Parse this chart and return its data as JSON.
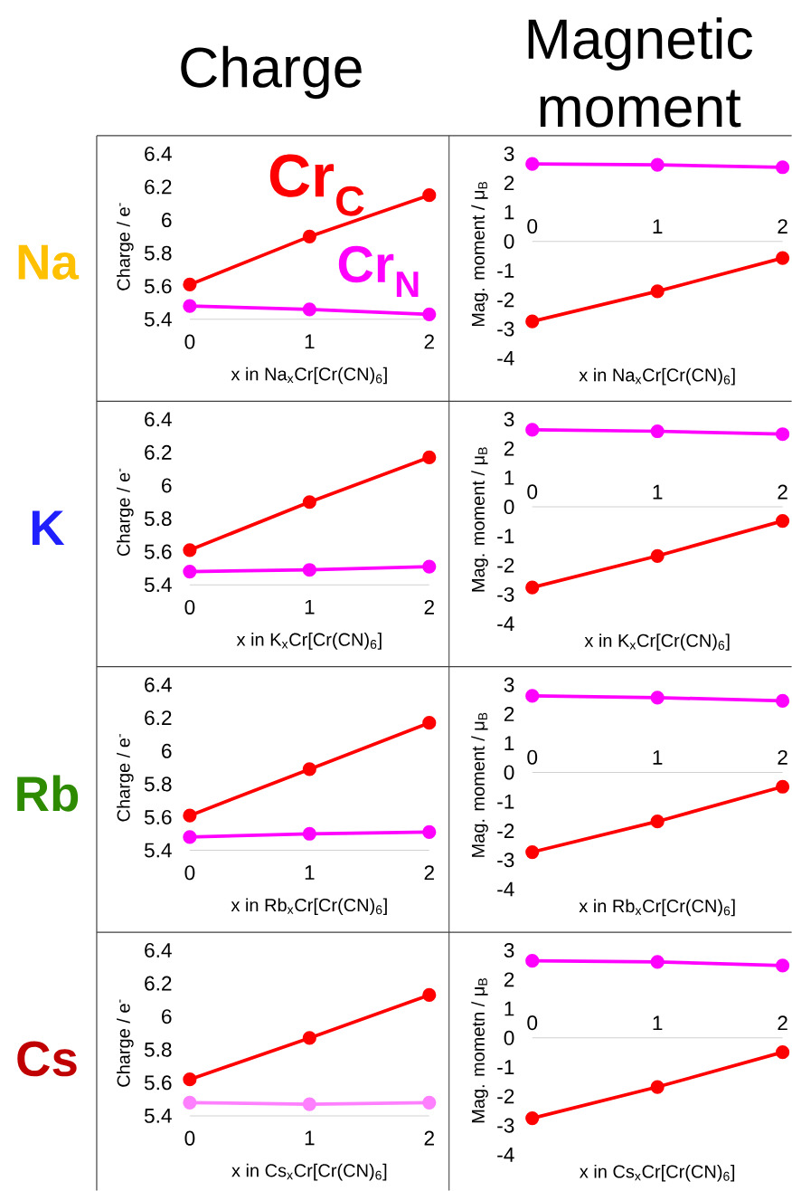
{
  "chart_data": [
    {
      "type": "line",
      "title": "Charge",
      "annotations": [
        "Na"
      ],
      "xlabel": "x in Na$_{x}$Cr[Cr(CN)$_{6}$]",
      "ylabel": "Charge / e$^{-}$",
      "x": [
        0,
        1,
        2
      ],
      "xlim": [
        0,
        2
      ],
      "xticks": [
        0,
        1,
        2
      ],
      "ylim": [
        5.4,
        6.4
      ],
      "yticks": [
        5.4,
        5.6,
        5.8,
        6,
        6.2,
        6.4
      ],
      "marker": "circle",
      "series": [
        {
          "name": "Cr$_{C}$",
          "color": "#ff0000",
          "values": [
            5.61,
            5.9,
            6.15
          ]
        },
        {
          "name": "Cr$_{N}$",
          "color": "#ff00ff",
          "values": [
            5.48,
            5.46,
            5.43
          ]
        }
      ]
    },
    {
      "type": "line",
      "title": "Magnetic moment",
      "xlabel": "x in Na$_{x}$Cr[Cr(CN)$_{6}$]",
      "ylabel": "Mag. moment / μ$_{B}$",
      "x": [
        0,
        1,
        2
      ],
      "xlim": [
        0,
        2
      ],
      "xticks": [
        0,
        1,
        2
      ],
      "ylim": [
        -4,
        3
      ],
      "yticks": [
        -4,
        -3,
        -2,
        -1,
        0,
        1,
        2,
        3
      ],
      "marker": "circle",
      "series": [
        {
          "color": "#ff00ff",
          "values": [
            2.65,
            2.62,
            2.54
          ]
        },
        {
          "color": "#ff0000",
          "values": [
            -2.74,
            -1.71,
            -0.57
          ]
        }
      ]
    },
    {
      "type": "line",
      "annotations": [
        "K"
      ],
      "xlabel": "x in K$_{x}$Cr[Cr(CN)$_{6}$]",
      "ylabel": "Charge / e$^{-}$",
      "x": [
        0,
        1,
        2
      ],
      "xlim": [
        0,
        2
      ],
      "xticks": [
        0,
        1,
        2
      ],
      "ylim": [
        5.4,
        6.4
      ],
      "yticks": [
        5.4,
        5.6,
        5.8,
        6,
        6.2,
        6.4
      ],
      "marker": "circle",
      "series": [
        {
          "color": "#ff0000",
          "values": [
            5.61,
            5.9,
            6.17
          ]
        },
        {
          "color": "#ff00ff",
          "values": [
            5.48,
            5.49,
            5.51
          ]
        }
      ]
    },
    {
      "type": "line",
      "xlabel": "x in K$_{x}$Cr[Cr(CN)$_{6}$]",
      "ylabel": "Mag. moment / μ$_{B}$",
      "x": [
        0,
        1,
        2
      ],
      "xlim": [
        0,
        2
      ],
      "xticks": [
        0,
        1,
        2
      ],
      "ylim": [
        -4,
        3
      ],
      "yticks": [
        -4,
        -3,
        -2,
        -1,
        0,
        1,
        2,
        3
      ],
      "marker": "circle",
      "series": [
        {
          "color": "#ff00ff",
          "values": [
            2.64,
            2.59,
            2.49
          ]
        },
        {
          "color": "#ff0000",
          "values": [
            -2.76,
            -1.68,
            -0.48
          ]
        }
      ]
    },
    {
      "type": "line",
      "annotations": [
        "Rb"
      ],
      "xlabel": "x in Rb$_{x}$Cr[Cr(CN)$_{6}$]",
      "ylabel": "Charge / e$^{-}$",
      "x": [
        0,
        1,
        2
      ],
      "xlim": [
        0,
        2
      ],
      "xticks": [
        0,
        1,
        2
      ],
      "ylim": [
        5.4,
        6.4
      ],
      "yticks": [
        5.4,
        5.6,
        5.8,
        6,
        6.2,
        6.4
      ],
      "marker": "circle",
      "series": [
        {
          "color": "#ff0000",
          "values": [
            5.61,
            5.89,
            6.17
          ]
        },
        {
          "color": "#ff00ff",
          "values": [
            5.48,
            5.5,
            5.51
          ]
        }
      ]
    },
    {
      "type": "line",
      "xlabel": "x in Rb$_{x}$Cr[Cr(CN)$_{6}$]",
      "ylabel": "Mag. moment / μ$_{B}$",
      "x": [
        0,
        1,
        2
      ],
      "xlim": [
        0,
        2
      ],
      "xticks": [
        0,
        1,
        2
      ],
      "ylim": [
        -4,
        3
      ],
      "yticks": [
        -4,
        -3,
        -2,
        -1,
        0,
        1,
        2,
        3
      ],
      "marker": "circle",
      "series": [
        {
          "color": "#ff00ff",
          "values": [
            2.62,
            2.56,
            2.45
          ]
        },
        {
          "color": "#ff0000",
          "values": [
            -2.73,
            -1.68,
            -0.49
          ]
        }
      ]
    },
    {
      "type": "line",
      "annotations": [
        "Cs"
      ],
      "xlabel": "x in Cs$_{x}$Cr[Cr(CN)$_{6}$]",
      "ylabel": "Charge / e$^{-}$",
      "x": [
        0,
        1,
        2
      ],
      "xlim": [
        0,
        2
      ],
      "xticks": [
        0,
        1,
        2
      ],
      "ylim": [
        5.4,
        6.4
      ],
      "yticks": [
        5.4,
        5.6,
        5.8,
        6,
        6.2,
        6.4
      ],
      "marker": "circle",
      "series": [
        {
          "color": "#ff0000",
          "values": [
            5.62,
            5.87,
            6.13
          ]
        },
        {
          "color": "#ff80ff",
          "values": [
            5.48,
            5.47,
            5.48
          ]
        }
      ]
    },
    {
      "type": "line",
      "xlabel": "x in Cs$_{x}$Cr[Cr(CN)$_{6}$]",
      "ylabel": "Mag. mometn / μ$_{B}$",
      "x": [
        0,
        1,
        2
      ],
      "xlim": [
        0,
        2
      ],
      "xticks": [
        0,
        1,
        2
      ],
      "ylim": [
        -4,
        3
      ],
      "yticks": [
        -4,
        -3,
        -2,
        -1,
        0,
        1,
        2,
        3
      ],
      "marker": "circle",
      "series": [
        {
          "color": "#ff00ff",
          "values": [
            2.64,
            2.6,
            2.48
          ]
        },
        {
          "color": "#ff0000",
          "values": [
            -2.75,
            -1.68,
            -0.49
          ]
        }
      ]
    }
  ]
}
